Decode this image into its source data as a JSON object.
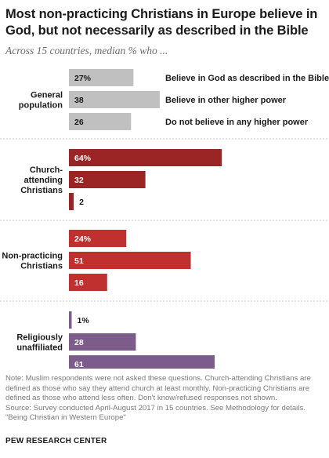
{
  "title_lines": [
    "Most non-practicing Christians in Europe believe in",
    "God, but not necessarily as described in the Bible"
  ],
  "subtitle": "Across 15 countries, median % who ...",
  "chart_data": {
    "type": "bar",
    "orientation": "horizontal",
    "categories": [
      "Believe in God as described in the Bible",
      "Believe in other higher power",
      "Do not believe in any higher power"
    ],
    "groups": [
      {
        "label_lines": [
          "General",
          "population"
        ],
        "color": "#c0c0c0",
        "values": [
          27,
          38,
          26
        ],
        "value_labels": [
          "27%",
          "38",
          "26"
        ]
      },
      {
        "label_lines": [
          "Church-",
          "attending",
          "Christians"
        ],
        "color": "#9b2424",
        "values": [
          64,
          32,
          2
        ],
        "value_labels": [
          "64%",
          "32",
          "2"
        ]
      },
      {
        "label_lines": [
          "Non-practicing",
          "Christians"
        ],
        "color": "#c0302e",
        "values": [
          24,
          51,
          16
        ],
        "value_labels": [
          "24%",
          "51",
          "16"
        ]
      },
      {
        "label_lines": [
          "Religiously",
          "unaffiliated"
        ],
        "color": "#7b5c8a",
        "values": [
          1,
          28,
          61
        ],
        "value_labels": [
          "1%",
          "28",
          "61"
        ]
      }
    ],
    "legend_position": "right of first group",
    "grid": false
  },
  "note_lines": [
    "Note: Muslim respondents were not asked these questions. Church-attending Christians are",
    "defined as those who say they attend church at least monthly. Non-practicing Christians are",
    "defined as those who attend less often. Don't know/refused responses not shown.",
    "Source: Survey conducted April-August 2017 in 15 countries. See Methodology for details.",
    "\"Being Christian in Western Europe\""
  ],
  "source_org": "PEW RESEARCH CENTER"
}
